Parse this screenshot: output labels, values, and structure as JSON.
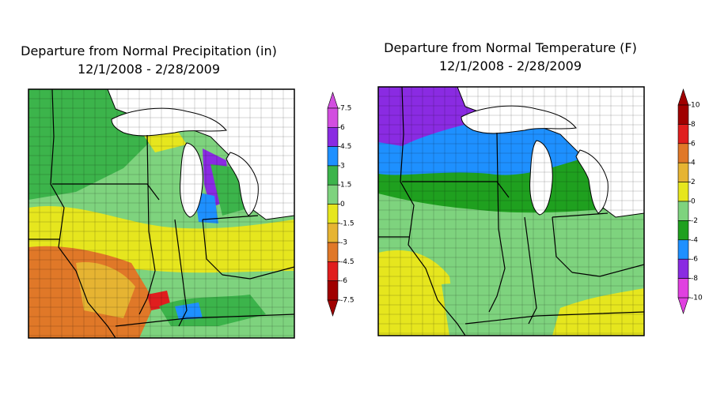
{
  "maps": [
    {
      "title": "Departure from Normal Precipitation (in)",
      "subtitle": "12/1/2008 - 2/28/2009",
      "colorbar": {
        "ticks": [
          7.5,
          6,
          4.5,
          3,
          1.5,
          0,
          -1.5,
          -3,
          -4.5,
          -6,
          -7.5
        ],
        "colors": [
          "#d24ee0",
          "#8a2be2",
          "#1e90ff",
          "#3cb44b",
          "#7ed37e",
          "#e6e61e",
          "#e6b432",
          "#e07828",
          "#e01e1e",
          "#a00000"
        ]
      }
    },
    {
      "title": "Departure from Normal Temperature (F)",
      "subtitle": "12/1/2008 - 2/28/2009",
      "colorbar": {
        "ticks": [
          10,
          8,
          6,
          4,
          2,
          0,
          -2,
          -4,
          -6,
          -8,
          -10
        ],
        "colors": [
          "#a00000",
          "#e01e1e",
          "#e07828",
          "#e6b432",
          "#e6e61e",
          "#7ed37e",
          "#1fa01f",
          "#1e90ff",
          "#8a2be2",
          "#e040e0"
        ]
      }
    }
  ]
}
